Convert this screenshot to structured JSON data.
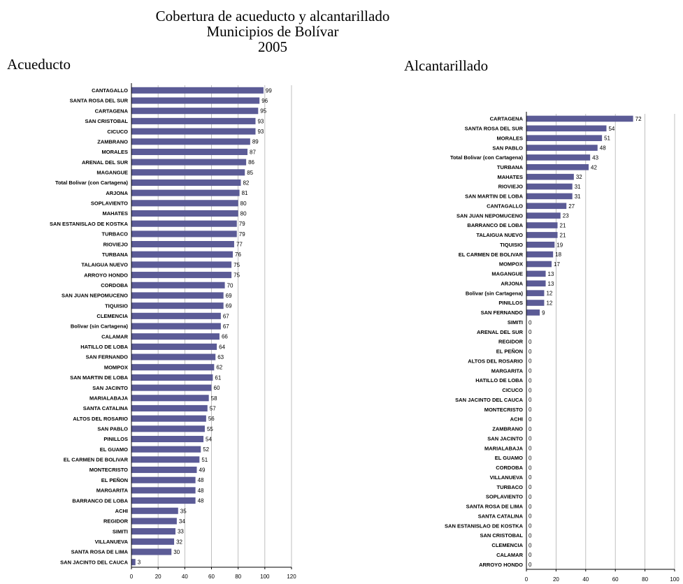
{
  "title": {
    "line1": "Cobertura de acueducto y alcantarillado",
    "line2": "Municipios de Bolívar",
    "line3": "2005"
  },
  "colors": {
    "bar": "#5b5b96",
    "grid": "#b0b0b0",
    "axis": "#000000"
  },
  "chart_data": [
    {
      "type": "bar",
      "orientation": "horizontal",
      "title": "Acueducto",
      "xlim": [
        0,
        120
      ],
      "xticks": [
        0,
        20,
        40,
        60,
        80,
        100,
        120
      ],
      "grid": true,
      "categories": [
        "CANTAGALLO",
        "SANTA ROSA DEL SUR",
        "CARTAGENA",
        "SAN CRISTOBAL",
        "CICUCO",
        "ZAMBRANO",
        "MORALES",
        "ARENAL DEL SUR",
        "MAGANGUE",
        "Total Bolivar (con Cartagena)",
        "ARJONA",
        "SOPLAVIENTO",
        "MAHATES",
        "SAN ESTANISLAO DE KOSTKA",
        "TURBACO",
        "RIOVIEJO",
        "TURBANA",
        "TALAIGUA NUEVO",
        "ARROYO HONDO",
        "CORDOBA",
        "SAN JUAN NEPOMUCENO",
        "TIQUISIO",
        "CLEMENCIA",
        "Bolivar (sin Cartagena)",
        "CALAMAR",
        "HATILLO DE LOBA",
        "SAN FERNANDO",
        "MOMPOX",
        "SAN MARTIN DE LOBA",
        "SAN JACINTO",
        "MARIALABAJA",
        "SANTA CATALINA",
        "ALTOS DEL ROSARIO",
        "SAN PABLO",
        "PINILLOS",
        "EL GUAMO",
        "EL CARMEN DE BOLIVAR",
        "MONTECRISTO",
        "EL PEÑON",
        "MARGARITA",
        "BARRANCO DE LOBA",
        "ACHI",
        "REGIDOR",
        "SIMITI",
        "VILLANUEVA",
        "SANTA ROSA DE LIMA",
        "SAN JACINTO DEL CAUCA"
      ],
      "values": [
        99,
        96,
        95,
        93,
        93,
        89,
        87,
        86,
        85,
        82,
        81,
        80,
        80,
        79,
        79,
        77,
        76,
        75,
        75,
        70,
        69,
        69,
        67,
        67,
        66,
        64,
        63,
        62,
        61,
        60,
        58,
        57,
        56,
        55,
        54,
        52,
        51,
        49,
        48,
        48,
        48,
        35,
        34,
        33,
        32,
        30,
        3
      ]
    },
    {
      "type": "bar",
      "orientation": "horizontal",
      "title": "Alcantarillado",
      "xlim": [
        0,
        100
      ],
      "xticks": [
        0,
        20,
        40,
        60,
        80,
        100
      ],
      "grid": true,
      "categories": [
        "CARTAGENA",
        "SANTA ROSA DEL SUR",
        "MORALES",
        "SAN PABLO",
        "Total Bolivar (con Cartagena)",
        "TURBANA",
        "MAHATES",
        "RIOVIEJO",
        "SAN MARTIN DE LOBA",
        "CANTAGALLO",
        "SAN JUAN NEPOMUCENO",
        "BARRANCO DE LOBA",
        "TALAIGUA NUEVO",
        "TIQUISIO",
        "EL CARMEN DE BOLIVAR",
        "MOMPOX",
        "MAGANGUE",
        "ARJONA",
        "Bolivar (sin Cartagena)",
        "PINILLOS",
        "SAN FERNANDO",
        "SIMITI",
        "ARENAL DEL SUR",
        "REGIDOR",
        "EL PEÑON",
        "ALTOS DEL ROSARIO",
        "MARGARITA",
        "HATILLO DE LOBA",
        "CICUCO",
        "SAN JACINTO DEL CAUCA",
        "MONTECRISTO",
        "ACHI",
        "ZAMBRANO",
        "SAN JACINTO",
        "MARIALABAJA",
        "EL GUAMO",
        "CORDOBA",
        "VILLANUEVA",
        "TURBACO",
        "SOPLAVIENTO",
        "SANTA ROSA DE LIMA",
        "SANTA CATALINA",
        "SAN ESTANISLAO DE KOSTKA",
        "SAN CRISTOBAL",
        "CLEMENCIA",
        "CALAMAR",
        "ARROYO HONDO"
      ],
      "values": [
        72,
        54,
        51,
        48,
        43,
        42,
        32,
        31,
        31,
        27,
        23,
        21,
        21,
        19,
        18,
        17,
        13,
        13,
        12,
        12,
        9,
        0,
        0,
        0,
        0,
        0,
        0,
        0,
        0,
        0,
        0,
        0,
        0,
        0,
        0,
        0,
        0,
        0,
        0,
        0,
        0,
        0,
        0,
        0,
        0,
        0,
        0
      ]
    }
  ]
}
